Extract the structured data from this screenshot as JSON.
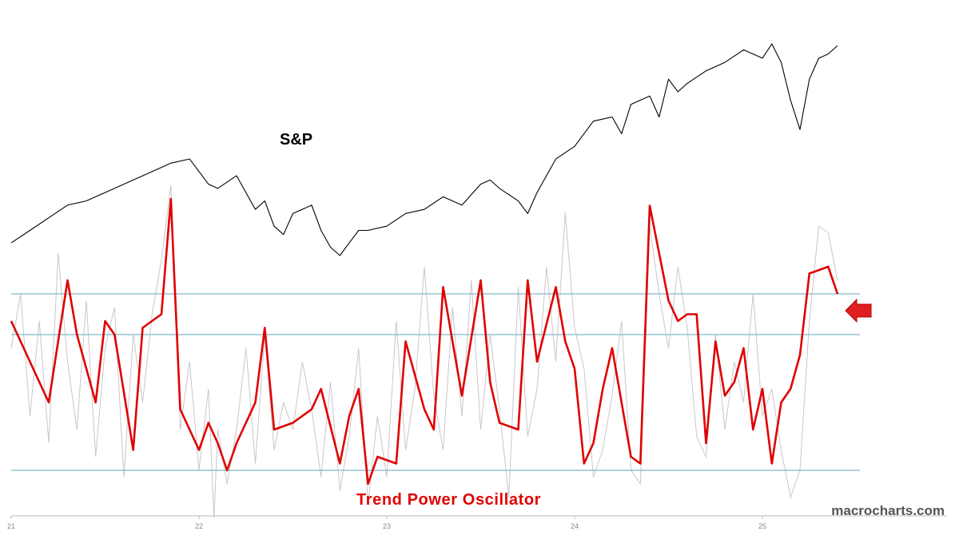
{
  "chart_data": {
    "type": "line",
    "watermark": "macrocharts.com",
    "x_ticks": [
      "21",
      "22",
      "23",
      "24",
      "25"
    ],
    "panels": [
      {
        "name": "price",
        "title": "S&P",
        "series": [
          {
            "name": "S&P",
            "color": "#000000",
            "x": [
              21.0,
              21.1,
              21.2,
              21.3,
              21.4,
              21.5,
              21.6,
              21.7,
              21.8,
              21.85,
              21.95,
              22.0,
              22.05,
              22.1,
              22.2,
              22.3,
              22.35,
              22.4,
              22.45,
              22.5,
              22.6,
              22.65,
              22.7,
              22.75,
              22.8,
              22.85,
              22.9,
              23.0,
              23.1,
              23.2,
              23.3,
              23.4,
              23.5,
              23.55,
              23.6,
              23.7,
              23.75,
              23.8,
              23.9,
              24.0,
              24.1,
              24.2,
              24.25,
              24.3,
              24.4,
              24.45,
              24.5,
              24.55,
              24.6,
              24.7,
              24.8,
              24.9,
              25.0,
              25.05,
              25.1,
              25.15,
              25.2,
              25.25,
              25.3,
              25.35,
              25.4
            ],
            "y": [
              3750,
              3900,
              4050,
              4200,
              4250,
              4350,
              4450,
              4550,
              4650,
              4700,
              4750,
              4600,
              4450,
              4400,
              4550,
              4150,
              4250,
              3950,
              3850,
              4100,
              4200,
              3900,
              3700,
              3600,
              3750,
              3900,
              3900,
              3950,
              4100,
              4150,
              4300,
              4200,
              4450,
              4500,
              4400,
              4250,
              4100,
              4350,
              4750,
              4900,
              5200,
              5250,
              5050,
              5400,
              5500,
              5250,
              5700,
              5550,
              5650,
              5800,
              5900,
              6050,
              5950,
              6120,
              5900,
              5450,
              5100,
              5700,
              5950,
              6000,
              6100
            ]
          }
        ]
      },
      {
        "name": "oscillator",
        "title": "Trend Power Oscillator",
        "y_range": [
          -100,
          100
        ],
        "reference_lines": [
          60,
          30,
          -70
        ],
        "series": [
          {
            "name": "Trend Power Oscillator",
            "color": "#e00000",
            "x": [
              21.0,
              21.1,
              21.2,
              21.3,
              21.35,
              21.45,
              21.5,
              21.55,
              21.65,
              21.7,
              21.8,
              21.85,
              21.9,
              22.0,
              22.05,
              22.1,
              22.15,
              22.2,
              22.3,
              22.35,
              22.4,
              22.5,
              22.6,
              22.65,
              22.75,
              22.8,
              22.85,
              22.9,
              22.95,
              23.05,
              23.1,
              23.2,
              23.25,
              23.3,
              23.4,
              23.5,
              23.55,
              23.6,
              23.7,
              23.75,
              23.8,
              23.9,
              23.95,
              24.0,
              24.05,
              24.1,
              24.15,
              24.2,
              24.3,
              24.35,
              24.4,
              24.5,
              24.55,
              24.6,
              24.65,
              24.7,
              24.75,
              24.8,
              24.85,
              24.9,
              24.95,
              25.0,
              25.05,
              25.1,
              25.15,
              25.2,
              25.25,
              25.35,
              25.4
            ],
            "y": [
              40,
              10,
              -20,
              70,
              30,
              -20,
              40,
              30,
              -55,
              35,
              45,
              130,
              -25,
              -55,
              -35,
              -50,
              -70,
              -50,
              -20,
              35,
              -40,
              -35,
              -25,
              -10,
              -65,
              -30,
              -10,
              -80,
              -60,
              -65,
              25,
              -25,
              -40,
              65,
              -15,
              70,
              -5,
              -35,
              -40,
              70,
              10,
              65,
              25,
              5,
              -65,
              -50,
              -10,
              20,
              -60,
              -65,
              125,
              55,
              40,
              45,
              45,
              -50,
              25,
              -15,
              -5,
              20,
              -40,
              -10,
              -65,
              -20,
              -10,
              15,
              75,
              80,
              60
            ]
          },
          {
            "name": "raw",
            "color": "#c8c8c8",
            "x": [
              21.0,
              21.05,
              21.1,
              21.15,
              21.2,
              21.25,
              21.3,
              21.35,
              21.4,
              21.45,
              21.5,
              21.55,
              21.6,
              21.65,
              21.7,
              21.75,
              21.8,
              21.85,
              21.9,
              21.95,
              22.0,
              22.05,
              22.08,
              22.1,
              22.15,
              22.2,
              22.25,
              22.3,
              22.35,
              22.4,
              22.45,
              22.5,
              22.55,
              22.6,
              22.65,
              22.7,
              22.75,
              22.8,
              22.85,
              22.9,
              22.95,
              23.0,
              23.05,
              23.1,
              23.15,
              23.2,
              23.25,
              23.3,
              23.35,
              23.4,
              23.45,
              23.5,
              23.55,
              23.6,
              23.65,
              23.7,
              23.75,
              23.8,
              23.85,
              23.9,
              23.95,
              24.0,
              24.05,
              24.1,
              24.15,
              24.2,
              24.25,
              24.3,
              24.35,
              24.4,
              24.45,
              24.5,
              24.55,
              24.6,
              24.65,
              24.7,
              24.75,
              24.8,
              24.85,
              24.9,
              24.95,
              25.0,
              25.05,
              25.1,
              25.15,
              25.2,
              25.25,
              25.3,
              25.35,
              25.4
            ],
            "y": [
              20,
              60,
              -30,
              40,
              -50,
              90,
              10,
              -40,
              55,
              -60,
              20,
              50,
              -75,
              30,
              -20,
              45,
              85,
              140,
              -40,
              10,
              -70,
              -10,
              -105,
              -40,
              -80,
              -40,
              20,
              -65,
              30,
              -55,
              -20,
              -40,
              10,
              -25,
              -75,
              -5,
              -85,
              -45,
              20,
              -95,
              -30,
              -75,
              40,
              -55,
              -10,
              80,
              -15,
              -55,
              50,
              -30,
              70,
              -40,
              30,
              -25,
              -90,
              65,
              -45,
              -10,
              80,
              10,
              120,
              35,
              5,
              -75,
              -55,
              -15,
              40,
              -70,
              -80,
              110,
              60,
              20,
              80,
              35,
              -45,
              -60,
              30,
              -40,
              10,
              -20,
              60,
              -30,
              -10,
              -55,
              -90,
              -70,
              40,
              110,
              105,
              70
            ]
          }
        ]
      }
    ]
  }
}
